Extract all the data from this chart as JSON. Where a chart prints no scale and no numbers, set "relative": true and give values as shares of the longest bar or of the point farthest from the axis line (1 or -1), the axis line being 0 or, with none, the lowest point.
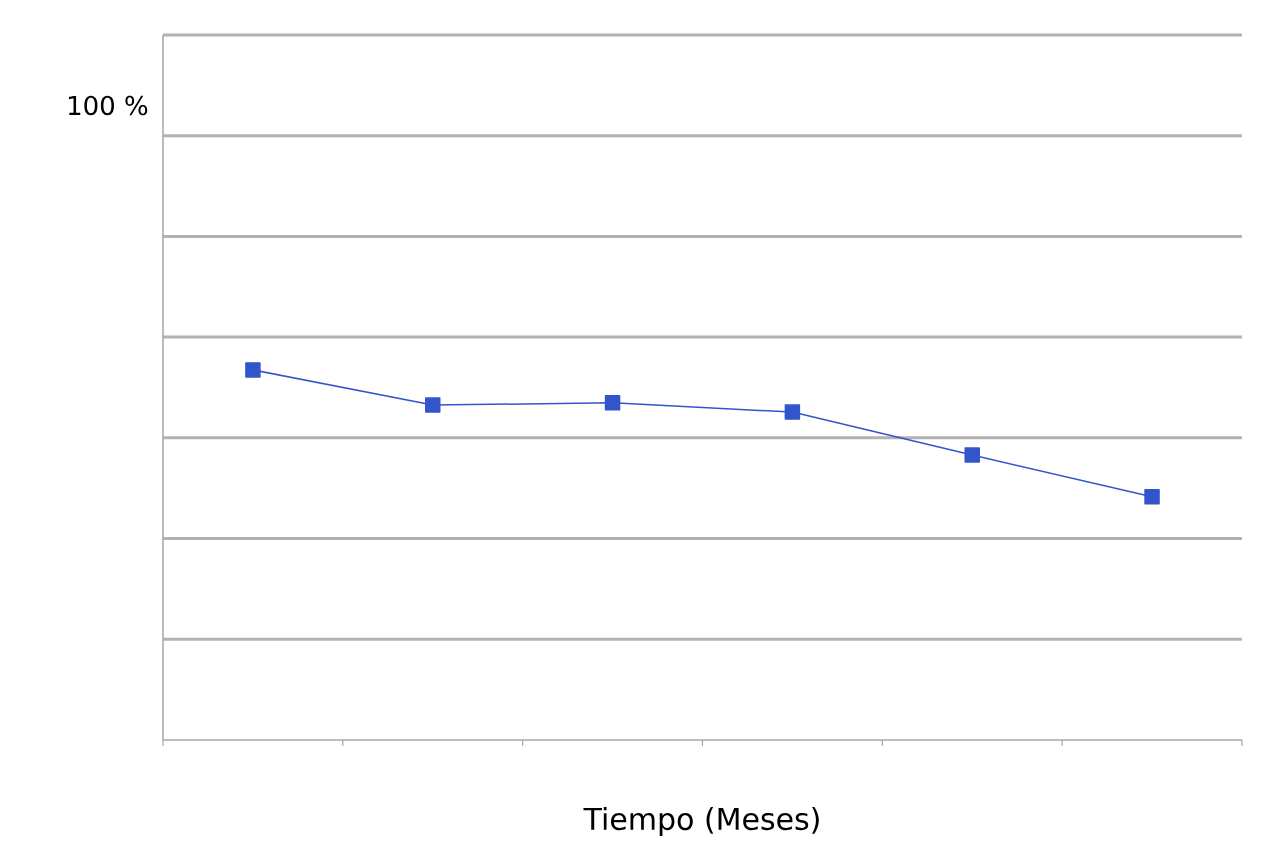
{
  "chart_data": {
    "type": "line",
    "relative": true,
    "xlabel": "Tiempo (Meses)",
    "annotations": [
      "100 %"
    ],
    "categories": [
      null,
      null,
      null,
      null,
      null,
      null
    ],
    "series": [
      {
        "color": "#3355cc",
        "values": [
          1,
          0.905,
          0.911,
          0.886,
          0.77,
          0.657
        ]
      }
    ],
    "grid": "y",
    "marker": "square",
    "line_style": "solid"
  }
}
